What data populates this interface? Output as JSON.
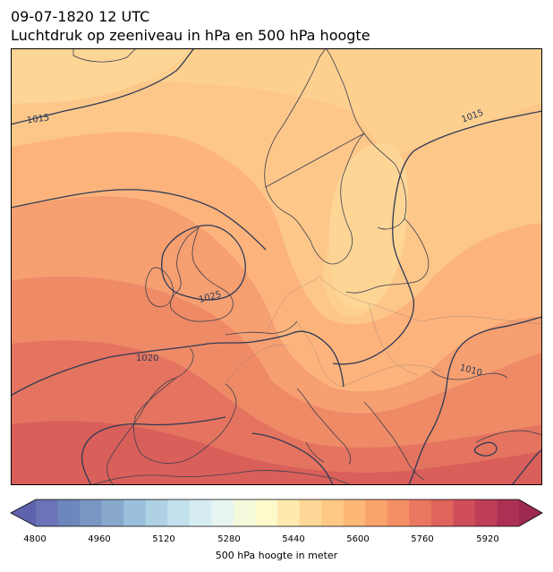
{
  "title_line1": "09-07-1820 12 UTC",
  "title_line2": "Luchtdruk op zeeniveau in hPa en 500 hPa hoogte",
  "contour_labels": [
    {
      "name": "isobar-1015-west",
      "text": "1015"
    },
    {
      "name": "isobar-1015-east",
      "text": "1015"
    },
    {
      "name": "isobar-1025",
      "text": "1025"
    },
    {
      "name": "isobar-1020",
      "text": "1020"
    },
    {
      "name": "isobar-1010",
      "text": "1010"
    }
  ],
  "colorbar": {
    "label": "500 hPa hoogte in meter",
    "ticks": [
      "4800",
      "4960",
      "5120",
      "5280",
      "5440",
      "5600",
      "5760",
      "5920"
    ],
    "colors": [
      "#6a74b6",
      "#6d86bc",
      "#7897c3",
      "#88a9cc",
      "#9ac0db",
      "#aed2e4",
      "#c2e1ec",
      "#d6eef3",
      "#e7f5f2",
      "#f5f9dc",
      "#fefacb",
      "#fee9ae",
      "#fed896",
      "#fec986",
      "#fdb878",
      "#f9a36d",
      "#f38f65",
      "#ea7860",
      "#df645b",
      "#d04e5a",
      "#be3e57",
      "#ab3054"
    ],
    "extend_low_color": "#5f63ad",
    "extend_high_color": "#9e2a52"
  },
  "field_colors": {
    "band1": "#fdd696",
    "band2": "#fdc78a",
    "band3": "#fcb47c",
    "band4": "#f69f71",
    "band5": "#ee8a66",
    "band6": "#e4735f",
    "band7": "#d95f5a",
    "isobar": "#2e3a55",
    "coast": "#3c3f4d",
    "border": "#8c7b78"
  }
}
